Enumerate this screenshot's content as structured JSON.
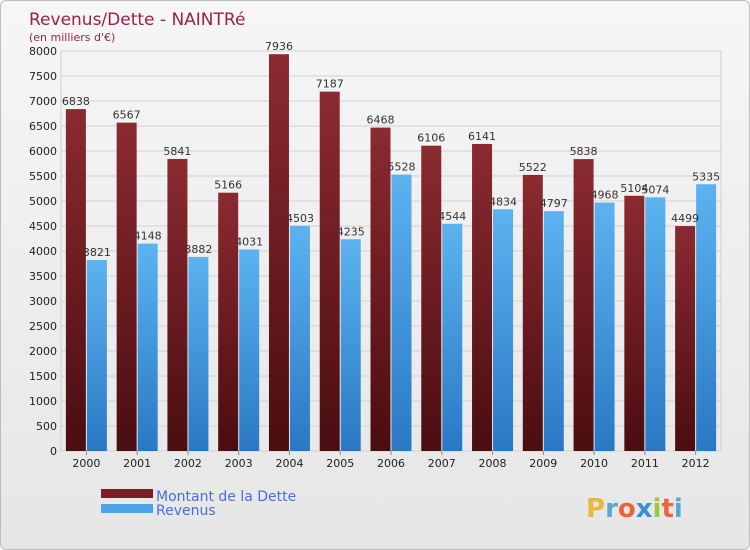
{
  "chart_data": {
    "type": "bar",
    "title": "Revenus/Dette - NAINTRé",
    "subtitle": "(en milliers d'€)",
    "categories": [
      "2000",
      "2001",
      "2002",
      "2003",
      "2004",
      "2005",
      "2006",
      "2007",
      "2008",
      "2009",
      "2010",
      "2011",
      "2012"
    ],
    "series": [
      {
        "name": "Montant de la Dette",
        "color": "#7a1e24",
        "values": [
          6838,
          6567,
          5841,
          5166,
          7936,
          7187,
          6468,
          6106,
          6141,
          5522,
          5838,
          5104,
          4499
        ]
      },
      {
        "name": "Revenus",
        "color": "#4aa3e6",
        "values": [
          3821,
          4148,
          3882,
          4031,
          4503,
          4235,
          5528,
          4544,
          4834,
          4797,
          4968,
          5074,
          5335
        ]
      }
    ],
    "ylim": [
      0,
      8000
    ],
    "yticks": [
      0,
      500,
      1000,
      1500,
      2000,
      2500,
      3000,
      3500,
      4000,
      4500,
      5000,
      5500,
      6000,
      6500,
      7000,
      7500,
      8000
    ],
    "grid": true,
    "legend": "bottom-left"
  },
  "brand": {
    "letters": [
      "P",
      "r",
      "o",
      "x",
      "i",
      "t",
      "i"
    ],
    "colors": [
      "#e8b93a",
      "#5aa7d6",
      "#e8663a",
      "#3a8fd6",
      "#a3c63a",
      "#e8663a",
      "#5aa7d6"
    ]
  }
}
